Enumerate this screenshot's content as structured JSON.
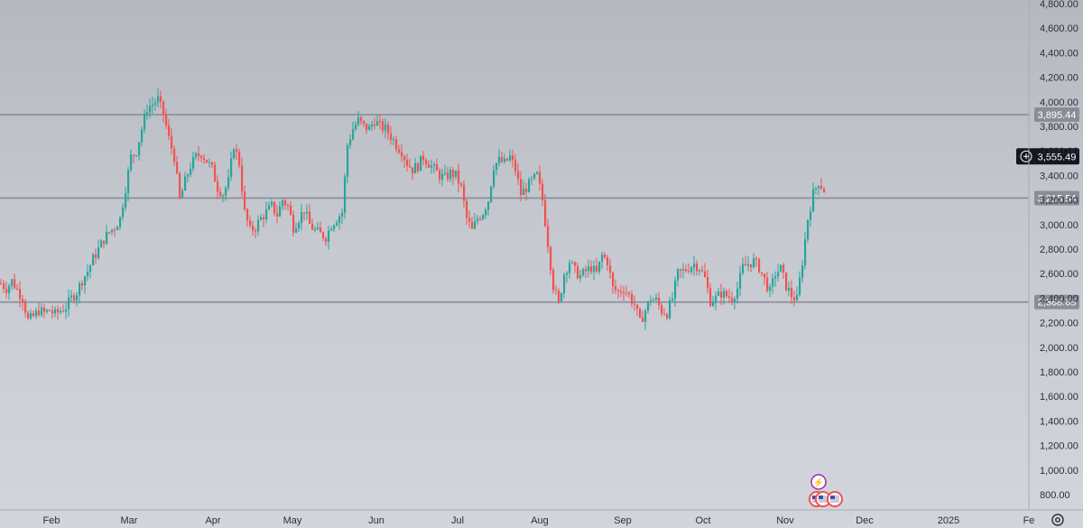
{
  "chart_data": {
    "type": "candlestick",
    "colors": {
      "up": "#26a69a",
      "down": "#ef5350",
      "hline": "#8a8d96",
      "label_bg": "#8a8d96",
      "price_label_bg": "#131722"
    },
    "y_axis": {
      "ylim": [
        720,
        4800
      ],
      "ticks": [
        "800.00",
        "1,000.00",
        "1,200.00",
        "1,400.00",
        "1,600.00",
        "1,800.00",
        "2,000.00",
        "2,200.00",
        "2,400.00",
        "2,600.00",
        "2,800.00",
        "3,000.00",
        "3,200.00",
        "3,400.00",
        "3,600.00",
        "3,800.00",
        "4,000.00",
        "4,200.00",
        "4,400.00",
        "4,600.00",
        "4,800.00"
      ]
    },
    "x_axis": {
      "labels": [
        "Feb",
        "Mar",
        "Apr",
        "May",
        "Jun",
        "Jul",
        "Aug",
        "Sep",
        "Oct",
        "Nov",
        "Dec",
        "2025",
        "Fe"
      ]
    },
    "horizontal_lines": [
      {
        "value": 3895.44,
        "label": "3,895.44"
      },
      {
        "value": 3215.54,
        "label": "3,215.54"
      },
      {
        "value": 2368.65,
        "label": "2,368.65"
      }
    ],
    "last_price": {
      "value": 3555.49,
      "label": "3,555.49"
    },
    "path": [
      [
        0,
        2520
      ],
      [
        6,
        2480
      ],
      [
        12,
        2540
      ],
      [
        18,
        2470
      ],
      [
        24,
        2400
      ],
      [
        30,
        2220
      ],
      [
        36,
        2250
      ],
      [
        42,
        2300
      ],
      [
        48,
        2280
      ],
      [
        54,
        2300
      ],
      [
        60,
        2270
      ],
      [
        66,
        2300
      ],
      [
        72,
        2330
      ],
      [
        78,
        2400
      ],
      [
        84,
        2450
      ],
      [
        90,
        2550
      ],
      [
        96,
        2620
      ],
      [
        102,
        2720
      ],
      [
        108,
        2800
      ],
      [
        114,
        2880
      ],
      [
        120,
        2940
      ],
      [
        126,
        2980
      ],
      [
        132,
        3050
      ],
      [
        138,
        3300
      ],
      [
        144,
        3550
      ],
      [
        150,
        3600
      ],
      [
        156,
        3780
      ],
      [
        162,
        3950
      ],
      [
        168,
        3980
      ],
      [
        174,
        4020
      ],
      [
        180,
        3900
      ],
      [
        186,
        3700
      ],
      [
        192,
        3550
      ],
      [
        198,
        3200
      ],
      [
        204,
        3350
      ],
      [
        210,
        3480
      ],
      [
        216,
        3550
      ],
      [
        222,
        3580
      ],
      [
        228,
        3520
      ],
      [
        234,
        3450
      ],
      [
        240,
        3300
      ],
      [
        246,
        3250
      ],
      [
        252,
        3350
      ],
      [
        258,
        3650
      ],
      [
        264,
        3500
      ],
      [
        270,
        3100
      ],
      [
        276,
        2950
      ],
      [
        282,
        2980
      ],
      [
        288,
        3050
      ],
      [
        294,
        3100
      ],
      [
        300,
        3150
      ],
      [
        306,
        3080
      ],
      [
        312,
        3200
      ],
      [
        318,
        3150
      ],
      [
        324,
        2980
      ],
      [
        330,
        3050
      ],
      [
        336,
        3120
      ],
      [
        342,
        3000
      ],
      [
        348,
        2950
      ],
      [
        354,
        2920
      ],
      [
        360,
        2900
      ],
      [
        366,
        3000
      ],
      [
        372,
        3050
      ],
      [
        378,
        3100
      ],
      [
        384,
        3650
      ],
      [
        390,
        3780
      ],
      [
        396,
        3850
      ],
      [
        402,
        3800
      ],
      [
        408,
        3780
      ],
      [
        414,
        3850
      ],
      [
        420,
        3800
      ],
      [
        426,
        3780
      ],
      [
        432,
        3720
      ],
      [
        438,
        3650
      ],
      [
        444,
        3600
      ],
      [
        450,
        3500
      ],
      [
        456,
        3450
      ],
      [
        462,
        3480
      ],
      [
        468,
        3550
      ],
      [
        474,
        3500
      ],
      [
        480,
        3450
      ],
      [
        486,
        3400
      ],
      [
        492,
        3380
      ],
      [
        498,
        3420
      ],
      [
        504,
        3400
      ],
      [
        510,
        3300
      ],
      [
        516,
        3050
      ],
      [
        522,
        2950
      ],
      [
        528,
        3050
      ],
      [
        534,
        3100
      ],
      [
        540,
        3200
      ],
      [
        546,
        3480
      ],
      [
        552,
        3520
      ],
      [
        558,
        3500
      ],
      [
        564,
        3550
      ],
      [
        570,
        3450
      ],
      [
        576,
        3250
      ],
      [
        582,
        3300
      ],
      [
        588,
        3350
      ],
      [
        594,
        3400
      ],
      [
        600,
        3200
      ],
      [
        606,
        2850
      ],
      [
        612,
        2500
      ],
      [
        618,
        2350
      ],
      [
        624,
        2600
      ],
      [
        630,
        2700
      ],
      [
        636,
        2620
      ],
      [
        642,
        2580
      ],
      [
        648,
        2620
      ],
      [
        654,
        2650
      ],
      [
        660,
        2600
      ],
      [
        666,
        2750
      ],
      [
        672,
        2700
      ],
      [
        678,
        2480
      ],
      [
        684,
        2450
      ],
      [
        690,
        2480
      ],
      [
        696,
        2420
      ],
      [
        702,
        2350
      ],
      [
        708,
        2200
      ],
      [
        714,
        2300
      ],
      [
        720,
        2400
      ],
      [
        726,
        2380
      ],
      [
        732,
        2300
      ],
      [
        738,
        2280
      ],
      [
        744,
        2400
      ],
      [
        750,
        2600
      ],
      [
        756,
        2620
      ],
      [
        762,
        2650
      ],
      [
        768,
        2680
      ],
      [
        774,
        2650
      ],
      [
        780,
        2560
      ],
      [
        786,
        2380
      ],
      [
        792,
        2400
      ],
      [
        798,
        2440
      ],
      [
        804,
        2420
      ],
      [
        810,
        2400
      ],
      [
        816,
        2480
      ],
      [
        822,
        2650
      ],
      [
        828,
        2680
      ],
      [
        834,
        2700
      ],
      [
        840,
        2650
      ],
      [
        846,
        2550
      ],
      [
        852,
        2450
      ],
      [
        858,
        2600
      ],
      [
        864,
        2640
      ],
      [
        870,
        2500
      ],
      [
        876,
        2420
      ],
      [
        882,
        2390
      ],
      [
        888,
        2700
      ],
      [
        894,
        3050
      ],
      [
        900,
        3250
      ],
      [
        906,
        3350
      ],
      [
        912,
        3280
      ]
    ],
    "note_markers": [
      "⚡"
    ]
  }
}
